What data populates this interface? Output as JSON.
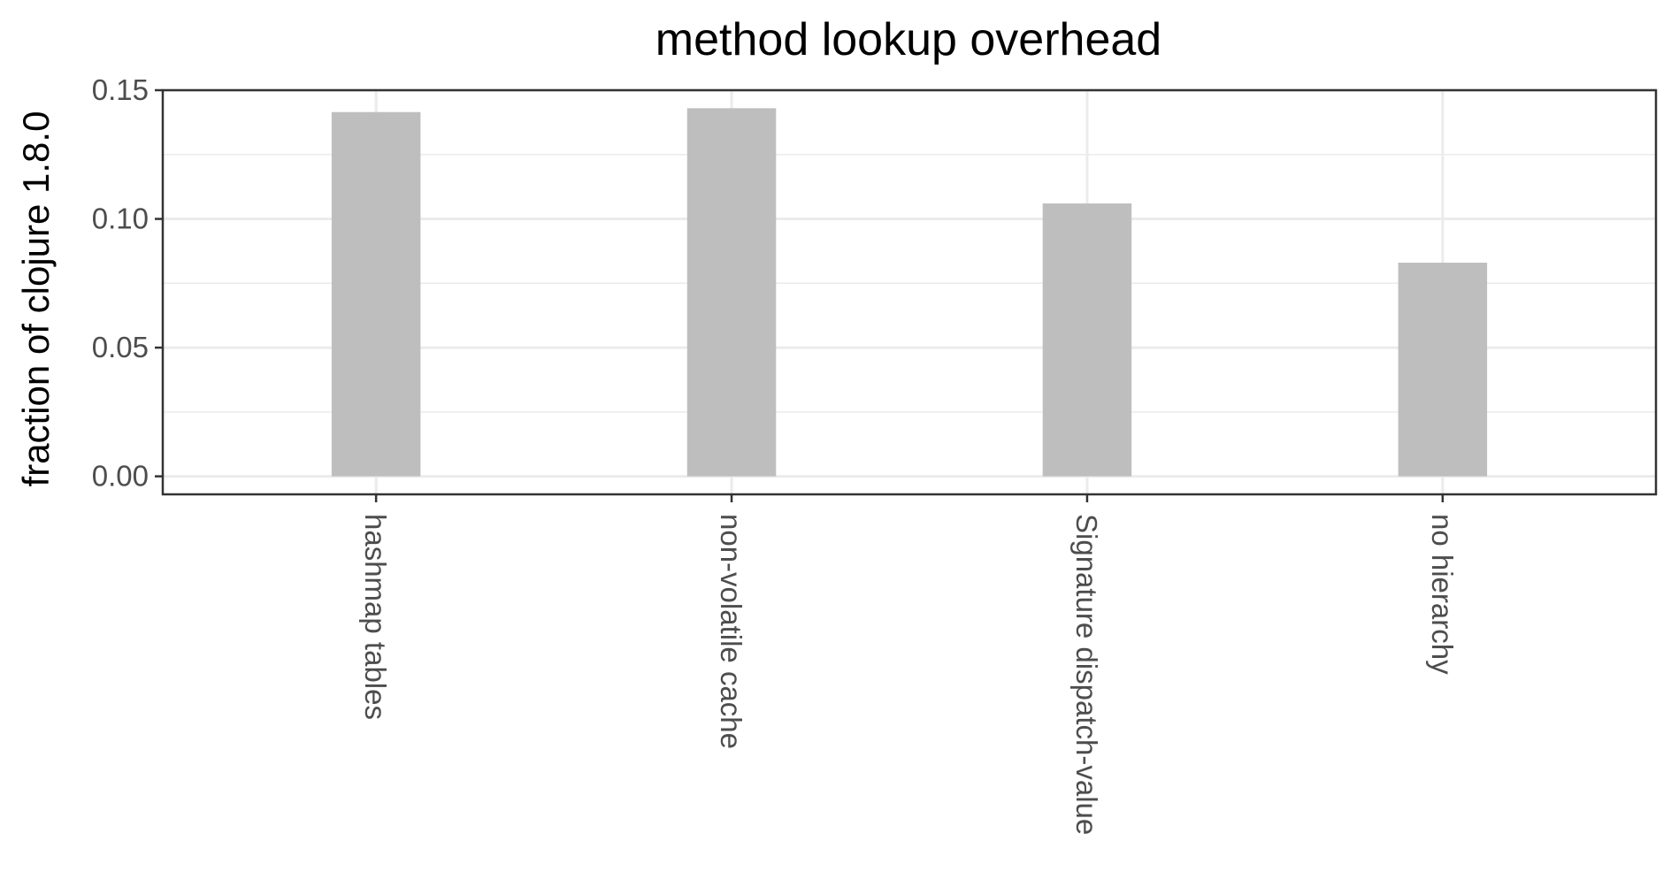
{
  "chart_data": {
    "type": "bar",
    "title": "method lookup overhead",
    "xlabel": "",
    "ylabel": "fraction of clojure 1.8.0",
    "categories": [
      "hashmap tables",
      "non-volatile cache",
      "Signature dispatch-value",
      "no hierarchy"
    ],
    "values": [
      0.1415,
      0.143,
      0.106,
      0.083
    ],
    "ylim": [
      -0.007,
      0.15
    ],
    "yticks": [
      0.0,
      0.05,
      0.1,
      0.15
    ],
    "ytick_labels": [
      "0.00",
      "0.05",
      "0.10",
      "0.15"
    ],
    "grid": true,
    "x_label_rotation": "vertical",
    "colors": {
      "bar": "#bebebe",
      "grid": "#ebebeb",
      "border": "#333333",
      "tick_text": "#4d4d4d"
    }
  }
}
